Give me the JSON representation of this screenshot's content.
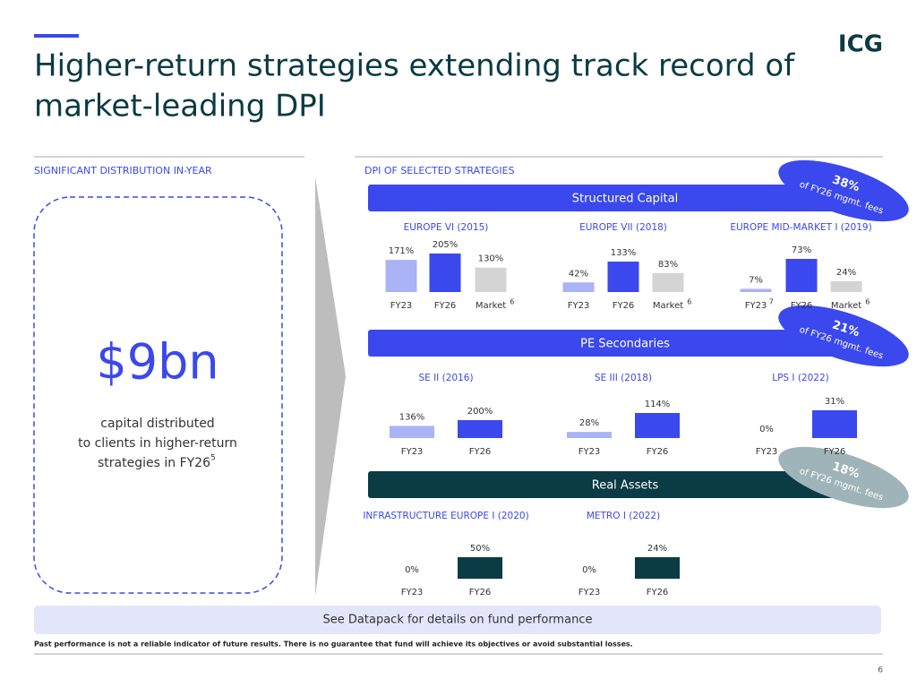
{
  "header": {
    "title_lines": [
      "Higher-return strategies extending track record of",
      "market-leading DPI"
    ],
    "logo": "ICG"
  },
  "left_panel": {
    "heading": "SIGNIFICANT DISTRIBUTION IN-YEAR",
    "amount": "$9bn",
    "text_lines": [
      "capital distributed",
      "to clients in higher-return",
      "strategies in FY26"
    ],
    "note": "5"
  },
  "right_panel": {
    "heading": "DPI OF SELECTED STRATEGIES",
    "sections": [
      {
        "name": "Structured Capital",
        "badge_value": "38%",
        "badge_text": "of FY26 mgmt. fees"
      },
      {
        "name": "PE Secondaries",
        "badge_value": "21%",
        "badge_text": "of FY26 mgmt. fees"
      },
      {
        "name": "Real Assets",
        "badge_value": "18%",
        "badge_text": "of FY26 mgmt. fees"
      }
    ]
  },
  "chart_data": [
    {
      "type": "bar",
      "title": "EUROPE VI (2015)",
      "categories": [
        "FY23",
        "FY26",
        "Market"
      ],
      "category_notes": [
        null,
        null,
        "6"
      ],
      "values": [
        171,
        205,
        130
      ],
      "value_labels": [
        "171%",
        "205%",
        "130%"
      ],
      "colors": [
        "#aab3f6",
        "#3a48ee",
        "#d4d4d4"
      ]
    },
    {
      "type": "bar",
      "title": "EUROPE VII (2018)",
      "categories": [
        "FY23",
        "FY26",
        "Market"
      ],
      "category_notes": [
        null,
        null,
        "6"
      ],
      "values": [
        42,
        133,
        83
      ],
      "value_labels": [
        "42%",
        "133%",
        "83%"
      ],
      "colors": [
        "#aab3f6",
        "#3a48ee",
        "#d4d4d4"
      ]
    },
    {
      "type": "bar",
      "title": "EUROPE MID-MARKET I (2019)",
      "categories": [
        "FY23",
        "FY26",
        "Market"
      ],
      "category_notes": [
        "7",
        null,
        "6"
      ],
      "values": [
        7,
        73,
        24
      ],
      "value_labels": [
        "7%",
        "73%",
        "24%"
      ],
      "colors": [
        "#aab3f6",
        "#3a48ee",
        "#d4d4d4"
      ]
    },
    {
      "type": "bar",
      "title": "SE II (2016)",
      "categories": [
        "FY23",
        "FY26"
      ],
      "values": [
        136,
        200
      ],
      "value_labels": [
        "136%",
        "200%"
      ],
      "colors": [
        "#aab3f6",
        "#3a48ee"
      ]
    },
    {
      "type": "bar",
      "title": "SE III (2018)",
      "categories": [
        "FY23",
        "FY26"
      ],
      "values": [
        28,
        114
      ],
      "value_labels": [
        "28%",
        "114%"
      ],
      "colors": [
        "#aab3f6",
        "#3a48ee"
      ]
    },
    {
      "type": "bar",
      "title": "LPS I (2022)",
      "categories": [
        "FY23",
        "FY26"
      ],
      "values": [
        0,
        31
      ],
      "value_labels": [
        "0%",
        "31%"
      ],
      "colors": [
        "#aab3f6",
        "#3a48ee"
      ]
    },
    {
      "type": "bar",
      "title": "INFRASTRUCTURE EUROPE I (2020)",
      "categories": [
        "FY23",
        "FY26"
      ],
      "values": [
        0,
        50
      ],
      "value_labels": [
        "0%",
        "50%"
      ],
      "colors": [
        "#aab3f6",
        "#0b3b44"
      ]
    },
    {
      "type": "bar",
      "title": "METRO I (2022)",
      "categories": [
        "FY23",
        "FY26"
      ],
      "values": [
        0,
        24
      ],
      "value_labels": [
        "0%",
        "24%"
      ],
      "colors": [
        "#aab3f6",
        "#0b3b44"
      ]
    }
  ],
  "footer": {
    "note_box": "See Datapack for details on fund performance",
    "disclaimer": "Past performance is not a reliable indicator of future results. There is no guarantee that fund will achieve its objectives or avoid substantial losses.",
    "page": "6"
  }
}
